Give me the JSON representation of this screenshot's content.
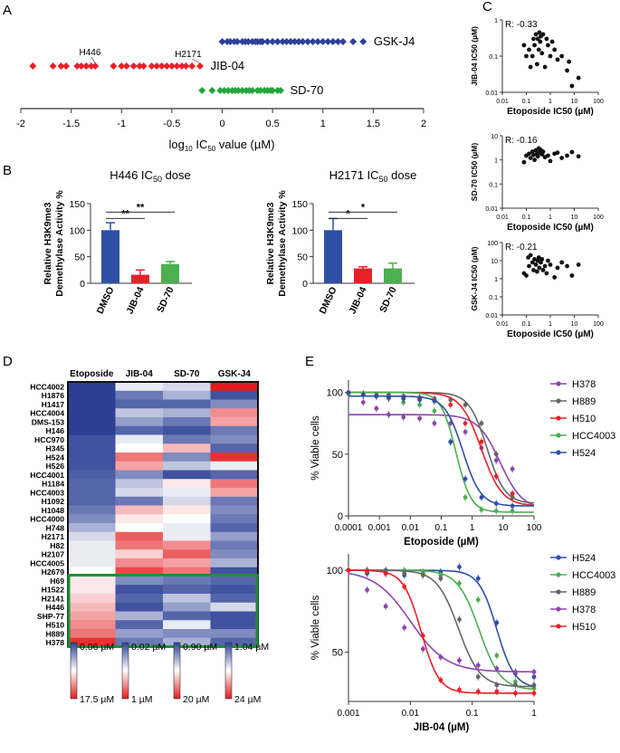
{
  "panels": {
    "A": "A",
    "B": "B",
    "C": "C",
    "D": "D",
    "E": "E"
  },
  "colors": {
    "gsk": "#2e3e9c",
    "jib": "#e8202a",
    "sd": "#22a53c",
    "blue": "#2f4fa5",
    "red": "#e8202a",
    "green": "#4caf50",
    "hm_low": "#2b3f95",
    "hm_high": "#e31a1c",
    "box": "#1e8f3a"
  },
  "chart_data": [
    {
      "id": "A",
      "type": "scatter",
      "title": "",
      "xlabel": "log10 IC50 value (µM)",
      "xlabel_parts": {
        "pre": "log",
        "sub": "10",
        "mid": " IC",
        "sub2": "50",
        "post": " value (µM)"
      },
      "xlim": [
        -2,
        2
      ],
      "xticks": [
        "-2",
        "-1.5",
        "-1",
        "-0.5",
        "0",
        "0.5",
        "1",
        "1.5",
        "2"
      ],
      "series": [
        {
          "name": "GSK-J4",
          "color": "#2e3e9c",
          "values": [
            0.0,
            0.05,
            0.08,
            0.12,
            0.15,
            0.2,
            0.23,
            0.26,
            0.3,
            0.33,
            0.35,
            0.38,
            0.4,
            0.45,
            0.5,
            0.55,
            0.6,
            0.64,
            0.68,
            0.72,
            0.76,
            0.8,
            0.85,
            0.9,
            0.95,
            1.0,
            1.05,
            1.1,
            1.15,
            1.2,
            1.3,
            1.4
          ]
        },
        {
          "name": "JIB-04",
          "color": "#e8202a",
          "values": [
            -1.88,
            -1.68,
            -1.6,
            -1.55,
            -1.44,
            -1.4,
            -1.35,
            -1.3,
            -1.26,
            -1.08,
            -1.0,
            -0.95,
            -0.88,
            -0.82,
            -0.78,
            -0.7,
            -0.65,
            -0.6,
            -0.55,
            -0.5,
            -0.45,
            -0.4,
            -0.36,
            -0.3,
            -0.22
          ]
        },
        {
          "name": "SD-70",
          "color": "#22a53c",
          "values": [
            -0.2,
            -0.1,
            -0.02,
            0.02,
            0.06,
            0.1,
            0.13,
            0.16,
            0.2,
            0.24,
            0.27,
            0.3,
            0.35,
            0.38,
            0.42,
            0.45,
            0.48,
            0.5,
            0.55,
            0.58
          ]
        }
      ],
      "annotations": [
        {
          "text": "H446",
          "x": -1.26
        },
        {
          "text": "H2171",
          "x": -0.22
        }
      ]
    },
    {
      "id": "B1",
      "type": "bar",
      "title": "H446 IC50 dose",
      "title_parts": {
        "pre": "H446 IC",
        "sub": "50",
        "post": " dose"
      },
      "ylabel": "Relative H3K9me3 Demethylase Activity %",
      "ylabel_lines": [
        "Relative H3K9me3",
        "Demethylase Activity %"
      ],
      "categories": [
        "DMSO",
        "JIB-04",
        "SD-70"
      ],
      "values": [
        100,
        16,
        36
      ],
      "errors": [
        14,
        9,
        5
      ],
      "ylim": [
        0,
        150
      ],
      "yticks": [
        "0",
        "50",
        "100",
        "150"
      ],
      "significance": [
        {
          "from": 0,
          "to": 1,
          "label": "**"
        },
        {
          "from": 0,
          "to": 2,
          "label": "**"
        }
      ]
    },
    {
      "id": "B2",
      "type": "bar",
      "title": "H2171 IC50 dose",
      "title_parts": {
        "pre": "H2171 IC",
        "sub": "50",
        "post": " dose"
      },
      "ylabel": "Relative H3K9me3 Demethylase Activity %",
      "ylabel_lines": [
        "Relative H3K9me3",
        "Demethylase Activity %"
      ],
      "categories": [
        "DMSO",
        "JIB-04",
        "SD-70"
      ],
      "values": [
        100,
        28,
        28
      ],
      "errors": [
        22,
        3,
        10
      ],
      "ylim": [
        0,
        150
      ],
      "yticks": [
        "0",
        "50",
        "100",
        "150"
      ],
      "significance": [
        {
          "from": 0,
          "to": 1,
          "label": "*"
        },
        {
          "from": 0,
          "to": 2,
          "label": "*"
        }
      ]
    },
    {
      "id": "C1",
      "type": "scatter",
      "title": "",
      "r_label": "R: -0.33",
      "xlabel": "Etoposide IC50 (µM)",
      "ylabel": "JIB-04 IC50 (µM)",
      "xscale": "log",
      "yscale": "log",
      "xlim": [
        0.01,
        100
      ],
      "ylim": [
        0.01,
        1
      ],
      "xticks": [
        "0.01",
        "0.1",
        "1",
        "10",
        "100"
      ],
      "yticks": [
        "0.01",
        "0.1",
        "1"
      ],
      "x": [
        0.08,
        0.1,
        0.13,
        0.15,
        0.18,
        0.2,
        0.22,
        0.25,
        0.28,
        0.3,
        0.33,
        0.35,
        0.38,
        0.4,
        0.45,
        0.5,
        0.6,
        0.7,
        0.8,
        1.0,
        1.2,
        1.5,
        2,
        3,
        5,
        6,
        8,
        15
      ],
      "y": [
        0.2,
        0.1,
        0.15,
        0.05,
        0.1,
        0.3,
        0.2,
        0.4,
        0.06,
        0.3,
        0.15,
        0.45,
        0.25,
        0.35,
        0.12,
        0.4,
        0.05,
        0.3,
        0.2,
        0.1,
        0.25,
        0.15,
        0.08,
        0.1,
        0.04,
        0.07,
        0.015,
        0.025
      ]
    },
    {
      "id": "C2",
      "type": "scatter",
      "r_label": "R: -0.16",
      "xlabel": "Etoposide IC50 (µM)",
      "ylabel": "SD-70 IC50 (µM)",
      "xscale": "log",
      "yscale": "log",
      "xlim": [
        0.01,
        100
      ],
      "ylim": [
        0.01,
        10
      ],
      "xticks": [
        "0.01",
        "0.1",
        "1",
        "10",
        "100"
      ],
      "yticks": [
        "0.01",
        "0.1",
        "1",
        "10"
      ],
      "x": [
        0.08,
        0.1,
        0.13,
        0.15,
        0.18,
        0.2,
        0.22,
        0.25,
        0.28,
        0.3,
        0.33,
        0.35,
        0.4,
        0.45,
        0.5,
        0.6,
        0.8,
        1.0,
        1.5,
        2,
        3,
        5,
        8,
        15
      ],
      "y": [
        0.8,
        1.5,
        1.8,
        1.2,
        2.2,
        1.6,
        1.0,
        2.5,
        1.8,
        1.4,
        3.0,
        2.0,
        2.6,
        1.7,
        2.2,
        1.3,
        1.5,
        0.9,
        1.8,
        2.0,
        1.2,
        1.5,
        2.1,
        1.4
      ]
    },
    {
      "id": "C3",
      "type": "scatter",
      "r_label": "R: -0.21",
      "xlabel": "Etoposide IC50 (µM)",
      "ylabel": "GSK-J4 IC50 (µM)",
      "xscale": "log",
      "yscale": "log",
      "xlim": [
        0.01,
        100
      ],
      "ylim": [
        0.01,
        100
      ],
      "xticks": [
        "0.01",
        "0.1",
        "1",
        "10",
        "100"
      ],
      "yticks": [
        "0.01",
        "0.1",
        "1",
        "10",
        "100"
      ],
      "x": [
        0.08,
        0.1,
        0.12,
        0.13,
        0.15,
        0.18,
        0.2,
        0.22,
        0.25,
        0.28,
        0.3,
        0.33,
        0.35,
        0.4,
        0.45,
        0.5,
        0.6,
        0.7,
        0.8,
        1.0,
        1.5,
        2,
        3,
        5,
        8,
        15
      ],
      "y": [
        2,
        1.5,
        15,
        5,
        20,
        8,
        3,
        12,
        6,
        2.5,
        10,
        15,
        4,
        8,
        12,
        3,
        5,
        2,
        10,
        6,
        1.2,
        4,
        8,
        5,
        1.5,
        6
      ]
    },
    {
      "id": "D",
      "type": "heatmap",
      "columns": [
        "Etoposide",
        "JIB-04",
        "SD-70",
        "GSK-J4"
      ],
      "rows": [
        "HCC4002",
        "H1876",
        "H1417",
        "HCC4004",
        "DMS-153",
        "H146",
        "HCC970",
        "H345",
        "H524",
        "H526",
        "HCC4001",
        "H1184",
        "HCC4003",
        "H1092",
        "H1048",
        "HCC4000",
        "H748",
        "H2171",
        "H82",
        "H2107",
        "HCC4005",
        "H2679",
        "H69",
        "H1522",
        "H2141",
        "H446",
        "SHP-77",
        "H510",
        "H889",
        "H378"
      ],
      "values": [
        [
          0.0,
          0.45,
          0.4,
          1.0
        ],
        [
          0.0,
          0.15,
          0.3,
          0.05
        ],
        [
          0.0,
          0.1,
          0.1,
          0.2
        ],
        [
          0.0,
          0.35,
          0.3,
          0.75
        ],
        [
          0.0,
          0.25,
          0.15,
          0.7
        ],
        [
          0.0,
          0.1,
          0.05,
          0.15
        ],
        [
          0.05,
          0.45,
          0.15,
          0.2
        ],
        [
          0.05,
          0.5,
          0.65,
          0.1
        ],
        [
          0.05,
          0.8,
          0.2,
          0.95
        ],
        [
          0.05,
          0.7,
          0.35,
          0.45
        ],
        [
          0.08,
          0.2,
          0.05,
          0.1
        ],
        [
          0.1,
          0.35,
          0.55,
          0.8
        ],
        [
          0.1,
          0.4,
          0.45,
          0.7
        ],
        [
          0.1,
          0.15,
          0.4,
          0.15
        ],
        [
          0.15,
          0.65,
          0.55,
          0.2
        ],
        [
          0.2,
          0.55,
          0.5,
          0.15
        ],
        [
          0.3,
          0.5,
          0.45,
          0.1
        ],
        [
          0.4,
          0.85,
          0.45,
          0.25
        ],
        [
          0.45,
          0.8,
          0.75,
          0.15
        ],
        [
          0.45,
          0.6,
          0.85,
          0.2
        ],
        [
          0.45,
          0.75,
          0.7,
          0.3
        ],
        [
          0.5,
          0.9,
          0.8,
          0.05
        ],
        [
          0.55,
          0.2,
          0.15,
          0.1
        ],
        [
          0.55,
          0.05,
          0.1,
          0.05
        ],
        [
          0.6,
          0.1,
          0.35,
          0.1
        ],
        [
          0.65,
          0.05,
          0.25,
          0.4
        ],
        [
          0.7,
          0.3,
          0.1,
          0.05
        ],
        [
          0.75,
          0.1,
          0.45,
          0.05
        ],
        [
          0.8,
          0.25,
          0.2,
          0.2
        ],
        [
          0.95,
          0.15,
          0.3,
          0.1
        ]
      ],
      "scales": [
        {
          "low": "0.06 µM",
          "high": "17.5 µM"
        },
        {
          "low": "0.02 µM",
          "high": "1 µM"
        },
        {
          "low": "0.90 µM",
          "high": "20 µM"
        },
        {
          "low": "1.04 µM",
          "high": "24 µM"
        }
      ],
      "boxed_rows": [
        22,
        29
      ]
    },
    {
      "id": "E1",
      "type": "line",
      "xlabel": "Etoposide (µM)",
      "ylabel": "% Viable cells",
      "xscale": "log",
      "xlim": [
        0.0001,
        100
      ],
      "ylim": [
        0,
        110
      ],
      "xticks": [
        "0.0001",
        "0.001",
        "0.01",
        "0.1",
        "1",
        "10",
        "100"
      ],
      "yticks": [
        "0",
        "50",
        "100"
      ],
      "series": [
        {
          "name": "H378",
          "color": "#8e44ad",
          "ic50": 8,
          "hill": 1.2,
          "top": 82,
          "bottom": 5,
          "x": [
            0.0001,
            0.0003,
            0.0008,
            0.002,
            0.006,
            0.02,
            0.06,
            0.2,
            0.6,
            2,
            6,
            20
          ],
          "y": [
            100,
            92,
            87,
            82,
            80,
            79,
            75,
            75,
            68,
            55,
            45,
            38
          ]
        },
        {
          "name": "H889",
          "color": "#666666",
          "ic50": 3,
          "hill": 1.5,
          "top": 100,
          "bottom": 10,
          "x": [
            0.0001,
            0.0003,
            0.0008,
            0.002,
            0.006,
            0.02,
            0.06,
            0.2,
            0.6,
            2,
            6,
            20
          ],
          "y": [
            99,
            99,
            98,
            98,
            97,
            96,
            95,
            94,
            90,
            75,
            50,
            15
          ]
        },
        {
          "name": "H510",
          "color": "#e8202a",
          "ic50": 2,
          "hill": 1.3,
          "top": 100,
          "bottom": 8,
          "x": [
            0.0001,
            0.0003,
            0.0008,
            0.002,
            0.006,
            0.02,
            0.06,
            0.2,
            0.6,
            2,
            6,
            20
          ],
          "y": [
            100,
            98,
            97,
            96,
            96,
            95,
            94,
            90,
            75,
            60,
            32,
            18
          ]
        },
        {
          "name": "HCC4003",
          "color": "#4caf50",
          "ic50": 0.3,
          "hill": 1.8,
          "top": 100,
          "bottom": 3,
          "x": [
            0.0001,
            0.0003,
            0.0008,
            0.002,
            0.006,
            0.02,
            0.06,
            0.2,
            0.6,
            2,
            6,
            20
          ],
          "y": [
            99,
            98,
            97,
            95,
            92,
            90,
            85,
            60,
            15,
            5,
            4,
            4
          ]
        },
        {
          "name": "H524",
          "color": "#2f4fa5",
          "ic50": 0.5,
          "hill": 1.5,
          "top": 97,
          "bottom": 8,
          "x": [
            0.0001,
            0.0003,
            0.0008,
            0.002,
            0.006,
            0.02,
            0.06,
            0.2,
            0.6,
            2,
            6,
            20
          ],
          "y": [
            100,
            98,
            97,
            96,
            95,
            94,
            93,
            60,
            30,
            15,
            10,
            8
          ]
        }
      ]
    },
    {
      "id": "E2",
      "type": "line",
      "xlabel": "JIB-04 (µM)",
      "ylabel": "% Viable cells",
      "xscale": "log",
      "xlim": [
        0.001,
        1
      ],
      "ylim": [
        20,
        110
      ],
      "xticks": [
        "0.001",
        "0.01",
        "0.1",
        "1"
      ],
      "yticks": [
        "50",
        "100"
      ],
      "series": [
        {
          "name": "H524",
          "color": "#2f4fa5",
          "ic50": 0.25,
          "hill": 3,
          "top": 100,
          "bottom": 28,
          "x": [
            0.001,
            0.002,
            0.004,
            0.008,
            0.016,
            0.031,
            0.062,
            0.125,
            0.25,
            0.5,
            1
          ],
          "y": [
            100,
            98,
            100,
            97,
            98,
            99,
            102,
            95,
            68,
            37,
            35
          ]
        },
        {
          "name": "HCC4003",
          "color": "#4caf50",
          "ic50": 0.13,
          "hill": 2.5,
          "top": 100,
          "bottom": 27,
          "x": [
            0.001,
            0.002,
            0.004,
            0.008,
            0.016,
            0.031,
            0.062,
            0.125,
            0.25,
            0.5,
            1
          ],
          "y": [
            100,
            100,
            98,
            100,
            99,
            97,
            92,
            82,
            48,
            32,
            28
          ]
        },
        {
          "name": "H889",
          "color": "#666666",
          "ic50": 0.06,
          "hill": 2.5,
          "top": 100,
          "bottom": 29,
          "x": [
            0.001,
            0.002,
            0.004,
            0.008,
            0.016,
            0.031,
            0.062,
            0.125,
            0.25,
            0.5,
            1
          ],
          "y": [
            100,
            100,
            99,
            98,
            97,
            95,
            70,
            35,
            30,
            30,
            30
          ]
        },
        {
          "name": "H378",
          "color": "#8e44ad",
          "ic50": 0.01,
          "hill": 1.5,
          "top": 100,
          "bottom": 38,
          "x": [
            0.001,
            0.002,
            0.004,
            0.008,
            0.016,
            0.031,
            0.062,
            0.125,
            0.25,
            0.5,
            1
          ],
          "y": [
            100,
            88,
            78,
            65,
            52,
            47,
            45,
            42,
            40,
            38,
            38
          ]
        },
        {
          "name": "H510",
          "color": "#e8202a",
          "ic50": 0.015,
          "hill": 3,
          "top": 100,
          "bottom": 25,
          "x": [
            0.001,
            0.002,
            0.004,
            0.008,
            0.016,
            0.031,
            0.062,
            0.125,
            0.25,
            0.5,
            1
          ],
          "y": [
            100,
            99,
            98,
            90,
            60,
            33,
            27,
            26,
            26,
            25,
            25
          ]
        }
      ]
    }
  ]
}
